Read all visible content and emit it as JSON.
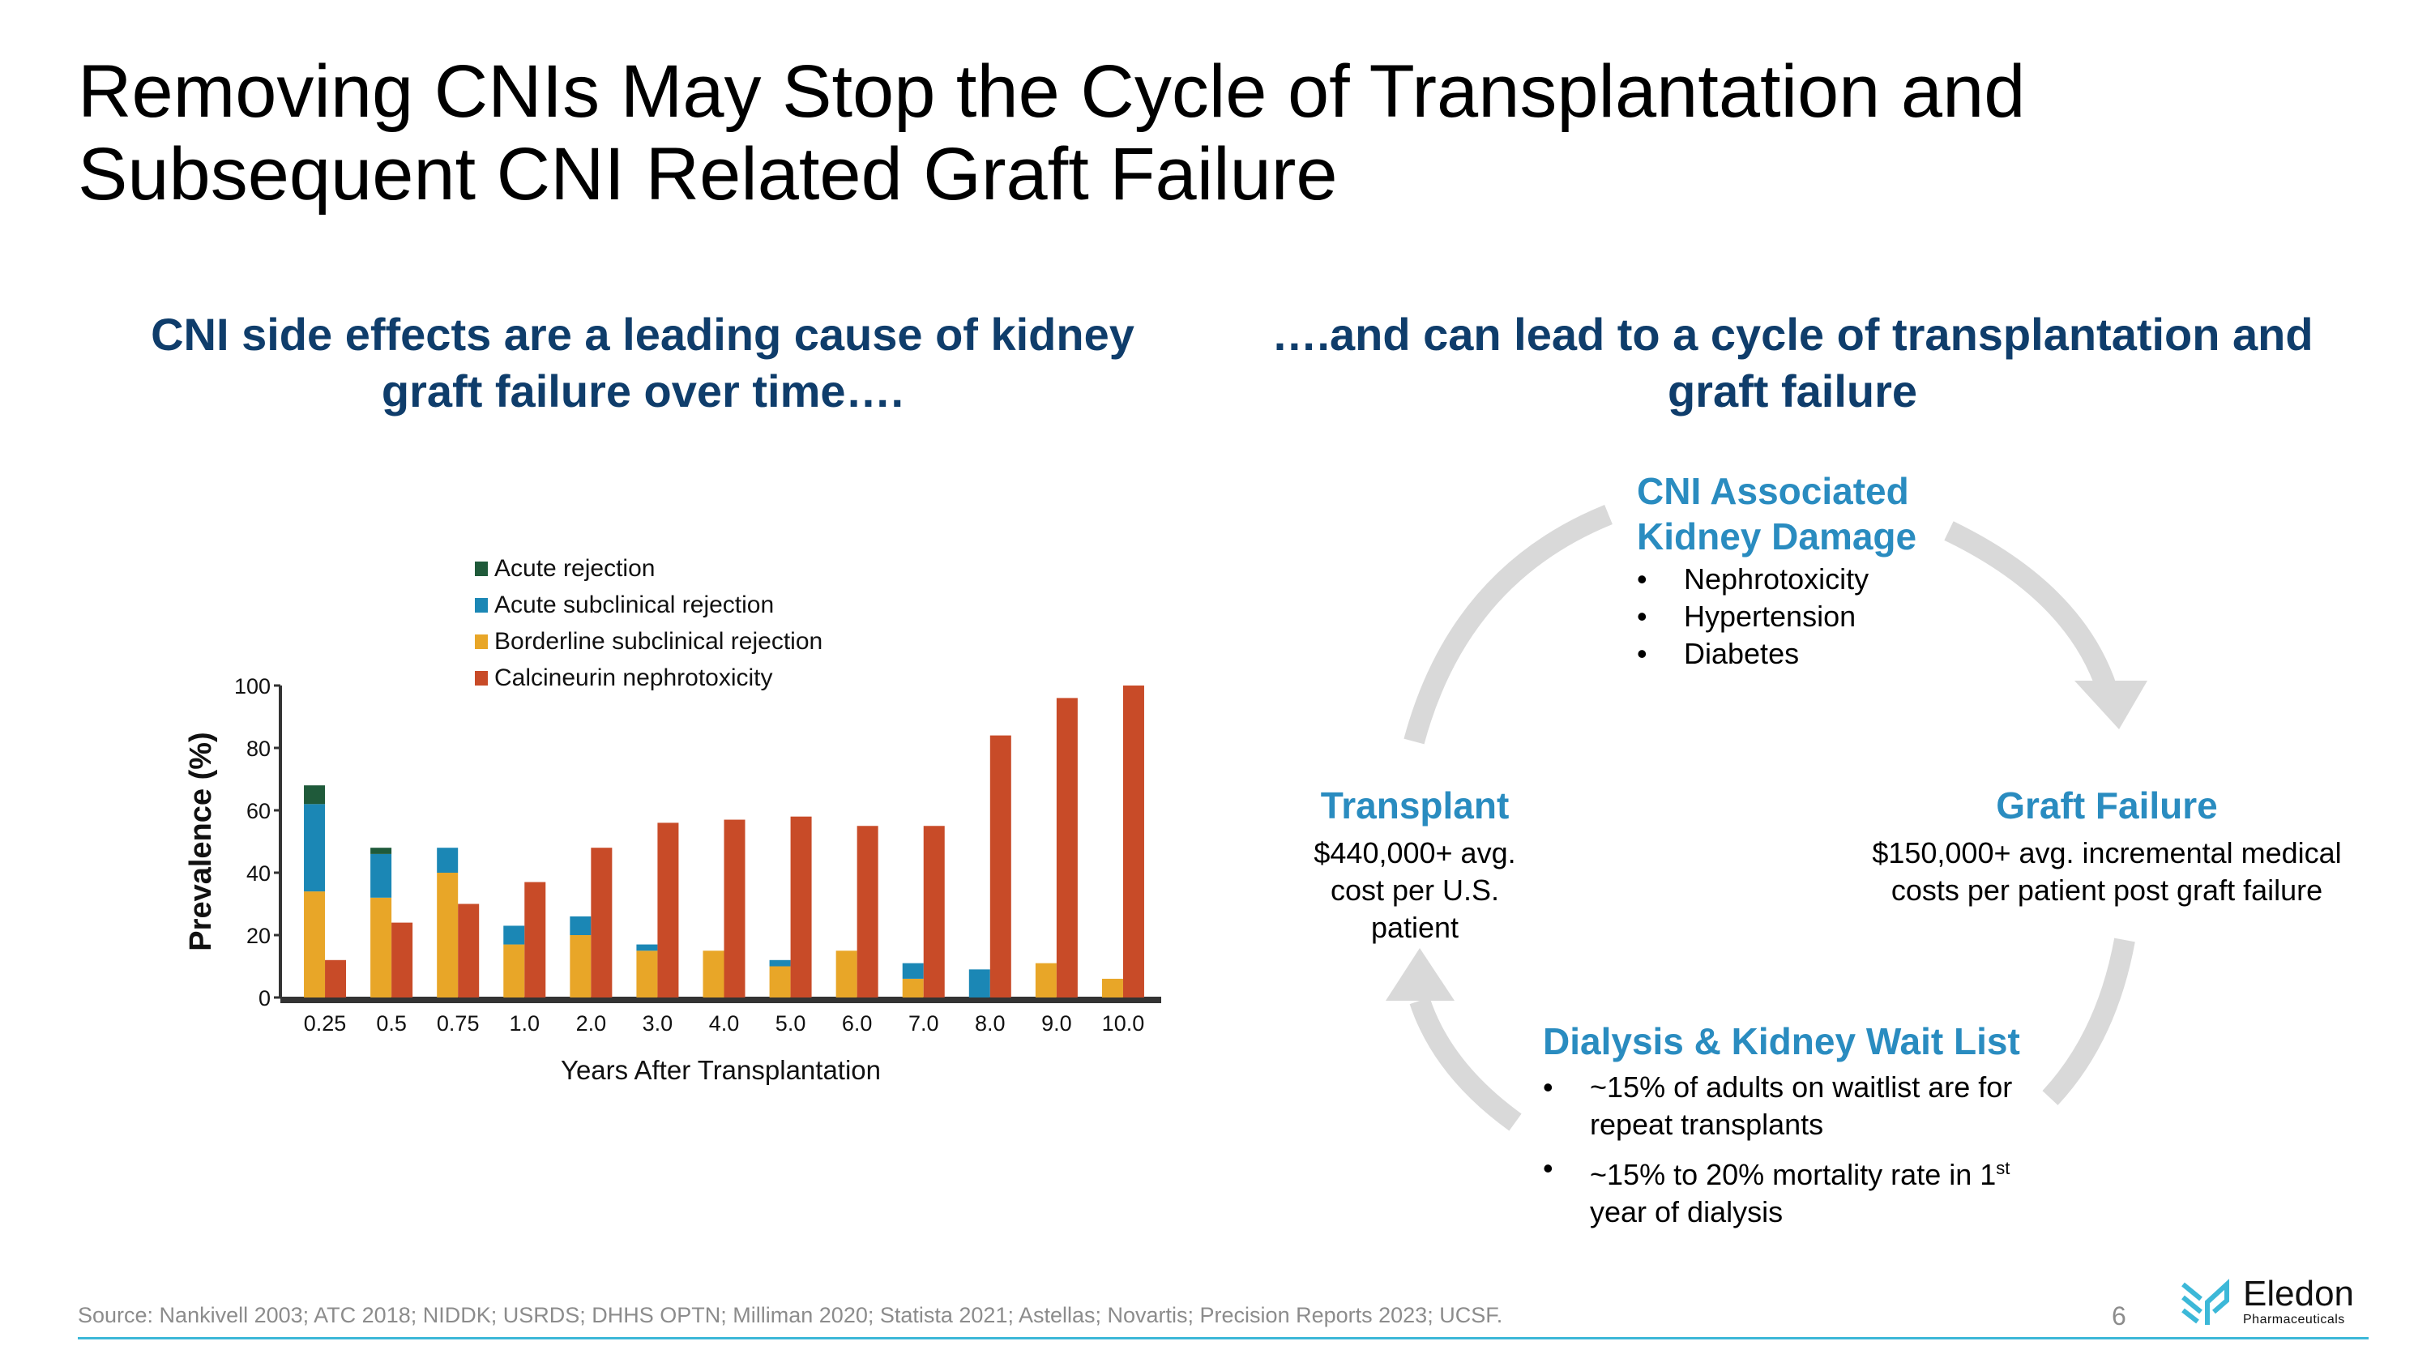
{
  "title": "Removing CNIs May Stop the Cycle of Transplantation and Subsequent CNI Related Graft Failure",
  "left_heading": "CNI side effects are a leading cause of kidney graft failure over time….",
  "right_heading": "….and can lead to a cycle of transplantation and graft failure",
  "cycle": {
    "cni": {
      "title": "CNI Associated Kidney Damage",
      "bullets": [
        "Nephrotoxicity",
        "Hypertension",
        "Diabetes"
      ]
    },
    "transplant": {
      "title": "Transplant",
      "text": "$440,000+ avg. cost per U.S. patient"
    },
    "graft": {
      "title": "Graft Failure",
      "text": "$150,000+ avg. incremental medical costs per patient post graft failure"
    },
    "dialysis": {
      "title": "Dialysis & Kidney Wait List",
      "bullets": [
        "~15% of adults on waitlist are for repeat transplants"
      ],
      "bullet2_pre": "~15% to 20% mortality rate in ",
      "bullet2_num": "1",
      "bullet2_sup": "st",
      "bullet2_post": " year of dialysis"
    },
    "arrow_color": "#d9d9d9",
    "accent": "#2a8cc0"
  },
  "footer": {
    "source": "Source: Nankivell 2003; ATC 2018; NIDDK; USRDS; DHHS OPTN; Milliman 2020; Statista 2021; Astellas; Novartis; Precision Reports 2023; UCSF.",
    "page": "6"
  },
  "logo": {
    "name": "Eledon",
    "sub": "Pharmaceuticals",
    "color": "#3cb8d8"
  },
  "chart_data": {
    "type": "bar",
    "xlabel": "Years After Transplantation",
    "ylabel": "Prevalence (%)",
    "ylim": [
      0,
      100
    ],
    "yticks": [
      0,
      20,
      40,
      60,
      80,
      100
    ],
    "categories": [
      "0.25",
      "0.5",
      "0.75",
      "1.0",
      "2.0",
      "3.0",
      "4.0",
      "5.0",
      "6.0",
      "7.0",
      "8.0",
      "9.0",
      "10.0"
    ],
    "legend_position": "top",
    "stacked_series": [
      {
        "name": "Borderline subclinical rejection",
        "color": "#e8a628",
        "values": [
          34,
          32,
          40,
          17,
          20,
          15,
          15,
          10,
          15,
          6,
          0,
          11,
          6
        ]
      },
      {
        "name": "Acute subclinical rejection",
        "color": "#1b87b5",
        "values": [
          28,
          14,
          8,
          6,
          6,
          2,
          0,
          2,
          0,
          5,
          9,
          0,
          0
        ]
      },
      {
        "name": "Acute rejection",
        "color": "#1f5a3a",
        "values": [
          6,
          2,
          0,
          0,
          0,
          0,
          0,
          0,
          0,
          0,
          0,
          0,
          0
        ]
      }
    ],
    "side_series": {
      "name": "Calcineurin nephrotoxicity",
      "color": "#c84b28",
      "values": [
        12,
        24,
        30,
        37,
        48,
        56,
        57,
        58,
        55,
        55,
        84,
        96,
        100
      ]
    },
    "legend_order": [
      "Acute rejection",
      "Acute subclinical rejection",
      "Borderline subclinical rejection",
      "Calcineurin nephrotoxicity"
    ]
  }
}
